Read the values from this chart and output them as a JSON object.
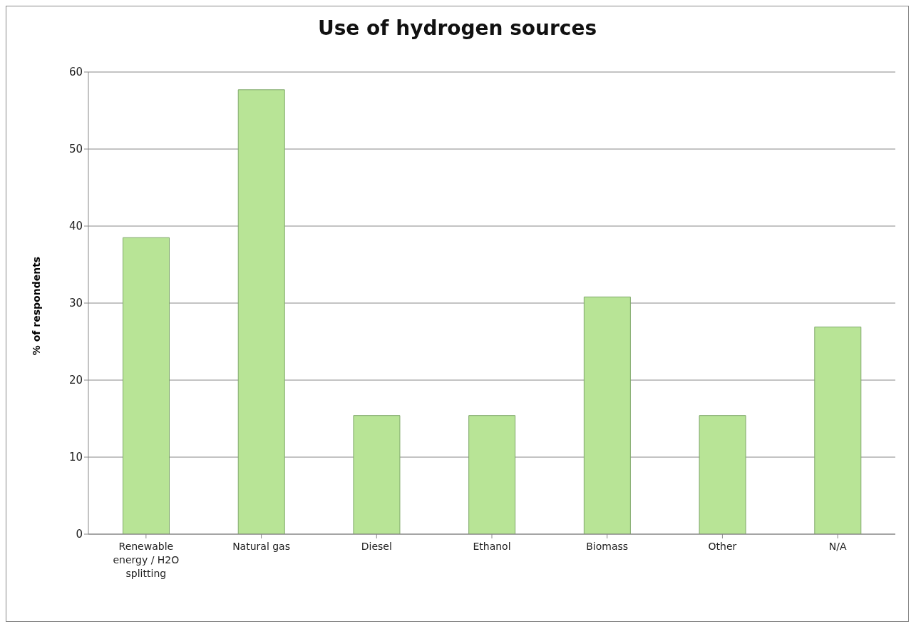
{
  "chart_data": {
    "type": "bar",
    "title": "Use of hydrogen sources",
    "ylabel": "% of respondents",
    "categories": [
      "Renewable energy / H2O splitting",
      "Natural gas",
      "Diesel",
      "Ethanol",
      "Biomass",
      "Other",
      "N/A"
    ],
    "values": [
      38.5,
      57.7,
      15.4,
      15.4,
      30.8,
      15.4,
      26.9
    ],
    "color": "#b8e496",
    "ylim": [
      0,
      60
    ],
    "yticks": [
      0,
      10,
      20,
      30,
      40,
      50,
      60
    ],
    "grid": "y",
    "legend": false
  }
}
